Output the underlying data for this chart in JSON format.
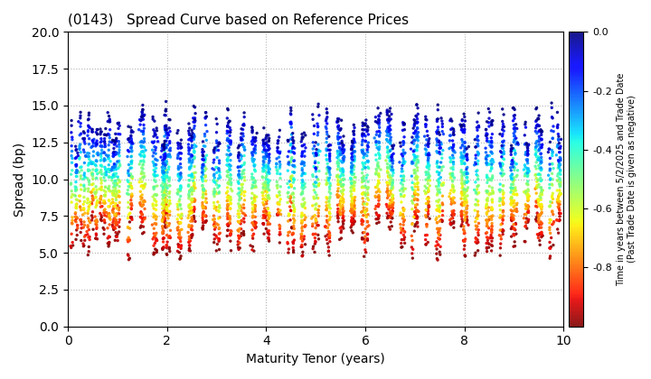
{
  "title": "(0143)   Spread Curve based on Reference Prices",
  "xlabel": "Maturity Tenor (years)",
  "ylabel": "Spread (bp)",
  "colorbar_label": "Time in years between 5/2/2025 and Trade Date\n(Past Trade Date is given as negative)",
  "xlim": [
    0,
    10
  ],
  "ylim": [
    0.0,
    20.0
  ],
  "yticks": [
    0.0,
    2.5,
    5.0,
    7.5,
    10.0,
    12.5,
    15.0,
    17.5,
    20.0
  ],
  "xticks": [
    0,
    2,
    4,
    6,
    8,
    10
  ],
  "colormap": "jet_r",
  "color_vmin": -1.0,
  "color_vmax": 0.0,
  "background_color": "#ffffff",
  "seed": 42,
  "figsize": [
    7.2,
    4.2
  ],
  "dpi": 100
}
